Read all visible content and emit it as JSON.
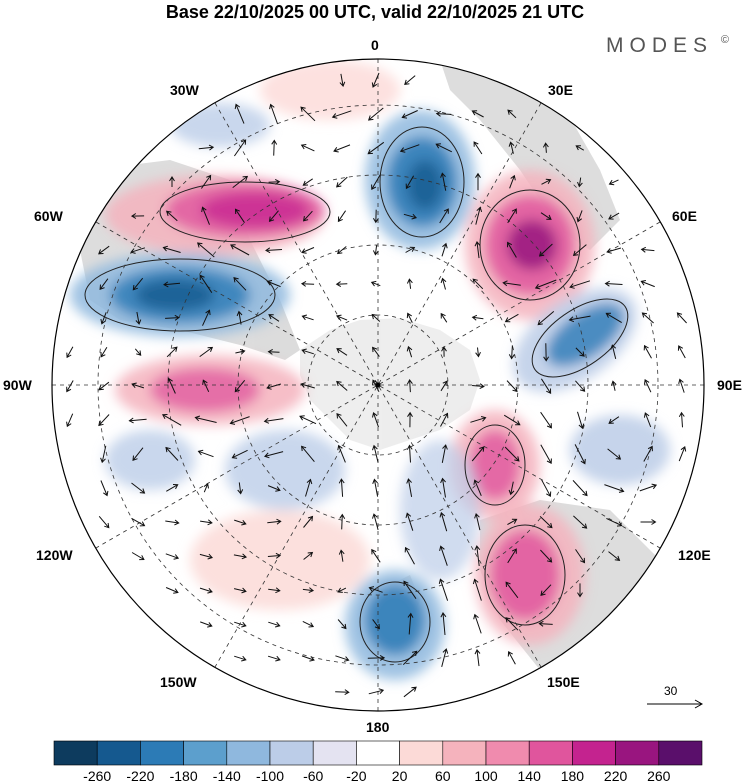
{
  "title": "Base 22/10/2025 00 UTC, valid 22/10/2025 21 UTC",
  "brand": {
    "name": "MODES",
    "mark": "©"
  },
  "longitude_labels": [
    {
      "id": "0",
      "text": "0"
    },
    {
      "id": "30E",
      "text": "30E"
    },
    {
      "id": "60E",
      "text": "60E"
    },
    {
      "id": "90E",
      "text": "90E"
    },
    {
      "id": "120E",
      "text": "120E"
    },
    {
      "id": "150E",
      "text": "150E"
    },
    {
      "id": "180",
      "text": "180"
    },
    {
      "id": "150W",
      "text": "150W"
    },
    {
      "id": "120W",
      "text": "120W"
    },
    {
      "id": "90W",
      "text": "90W"
    },
    {
      "id": "60W",
      "text": "60W"
    },
    {
      "id": "30W",
      "text": "30W"
    }
  ],
  "reference_vector": {
    "value": "30"
  },
  "colorbar": {
    "colors": [
      "#0d3b5e",
      "#15598f",
      "#2c7bb6",
      "#5c9fcd",
      "#8fb8de",
      "#bccde8",
      "#e4e3f1",
      "#ffffff",
      "#fcdad7",
      "#f5b3bd",
      "#f08bae",
      "#e0559d",
      "#c4238f",
      "#99157f",
      "#5a0f6b"
    ],
    "ticks": [
      "-260",
      "-220",
      "-180",
      "-140",
      "-100",
      "-60",
      "-20",
      "20",
      "60",
      "100",
      "140",
      "180",
      "220",
      "260"
    ]
  },
  "colors": {
    "land": "#d9d9d9",
    "antarctica": "#e8e8e8",
    "text": "#000000"
  }
}
